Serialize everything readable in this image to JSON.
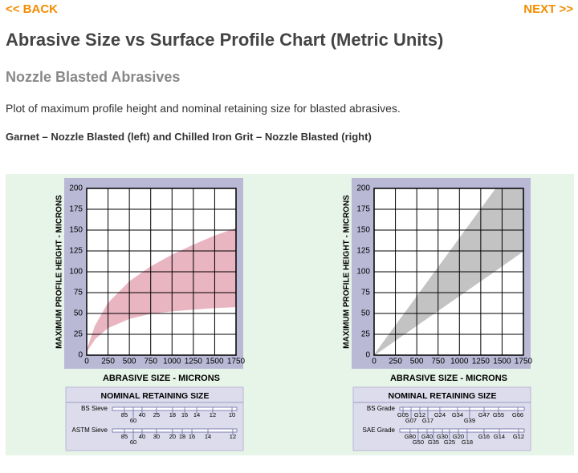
{
  "nav": {
    "back": "<< BACK",
    "next": "NEXT >>"
  },
  "title": "Abrasive Size vs Surface Profile Chart (Metric Units)",
  "subtitle": "Nozzle Blasted Abrasives",
  "description": "Plot of maximum profile height and nominal retaining size for blasted abrasives.",
  "caption": "Garnet – Nozzle Blasted (left) and Chilled Iron Grit – Nozzle Blasted (right)",
  "chart_data": [
    {
      "type": "band",
      "xlabel": "ABRASIVE SIZE - MICRONS",
      "ylabel": "MAXIMUM PROFILE HEIGHT - MICRONS",
      "x": [
        0,
        100,
        250,
        500,
        750,
        1000,
        1250,
        1500,
        1750
      ],
      "upper": [
        5,
        35,
        62,
        88,
        106,
        120,
        132,
        143,
        152
      ],
      "lower": [
        5,
        20,
        33,
        44,
        50,
        53,
        55,
        57,
        58
      ],
      "color": "#e8b5c1",
      "grid": true,
      "xlim": [
        0,
        1750
      ],
      "xticks": [
        0,
        250,
        500,
        750,
        1000,
        1250,
        1500,
        1750
      ],
      "ylim": [
        0,
        200
      ],
      "yticks": [
        0,
        25,
        50,
        75,
        100,
        125,
        150,
        175,
        200
      ],
      "scale": {
        "title": "NOMINAL RETAINING SIZE",
        "rows": [
          {
            "name": "BS Sieve",
            "ticks": [
              {
                "label": "85",
                "at": 442,
                "row": 1
              },
              {
                "label": "60",
                "at": 546,
                "row": 2
              },
              {
                "label": "40",
                "at": 649,
                "row": 1
              },
              {
                "label": "25",
                "at": 818,
                "row": 1
              },
              {
                "label": "18",
                "at": 1006,
                "row": 1
              },
              {
                "label": "16",
                "at": 1148,
                "row": 1
              },
              {
                "label": "14",
                "at": 1289,
                "row": 1
              },
              {
                "label": "12",
                "at": 1477,
                "row": 1
              },
              {
                "label": "10",
                "at": 1703,
                "row": 1
              }
            ]
          },
          {
            "name": "ASTM Sieve",
            "ticks": [
              {
                "label": "85",
                "at": 442,
                "row": 1
              },
              {
                "label": "60",
                "at": 546,
                "row": 2
              },
              {
                "label": "40",
                "at": 649,
                "row": 1
              },
              {
                "label": "30",
                "at": 818,
                "row": 1
              },
              {
                "label": "20",
                "at": 1006,
                "row": 1
              },
              {
                "label": "18",
                "at": 1120,
                "row": 1
              },
              {
                "label": "16",
                "at": 1233,
                "row": 1
              },
              {
                "label": "14",
                "at": 1421,
                "row": 1
              },
              {
                "label": "12",
                "at": 1712,
                "row": 1
              }
            ]
          }
        ]
      }
    },
    {
      "type": "band",
      "xlabel": "ABRASIVE SIZE - MICRONS",
      "ylabel": "MAXIMUM PROFILE HEIGHT - MICRONS",
      "x": [
        0,
        1430,
        1750
      ],
      "upper": [
        0,
        200,
        200
      ],
      "lower": [
        0,
        102,
        125
      ],
      "color": "#c3c3c3",
      "grid": true,
      "xlim": [
        0,
        1750
      ],
      "xticks": [
        0,
        250,
        500,
        750,
        1000,
        1250,
        1500,
        1750
      ],
      "ylim": [
        0,
        200
      ],
      "yticks": [
        0,
        25,
        50,
        75,
        100,
        125,
        150,
        175,
        200
      ],
      "scale": {
        "title": "NOMINAL RETAINING SIZE",
        "rows": [
          {
            "name": "BS Grade",
            "ticks": [
              {
                "label": "G05",
                "at": 339,
                "row": 1
              },
              {
                "label": "G07",
                "at": 433,
                "row": 2
              },
              {
                "label": "G12",
                "at": 536,
                "row": 1
              },
              {
                "label": "G17",
                "at": 630,
                "row": 2
              },
              {
                "label": "G24",
                "at": 771,
                "row": 1
              },
              {
                "label": "G34",
                "at": 978,
                "row": 1
              },
              {
                "label": "G39",
                "at": 1119,
                "row": 2
              },
              {
                "label": "G47",
                "at": 1289,
                "row": 1
              },
              {
                "label": "G55",
                "at": 1458,
                "row": 1
              },
              {
                "label": "G66",
                "at": 1684,
                "row": 1
              }
            ]
          },
          {
            "name": "SAE Grade",
            "ticks": [
              {
                "label": "G80",
                "at": 423,
                "row": 1
              },
              {
                "label": "G50",
                "at": 517,
                "row": 2
              },
              {
                "label": "G40",
                "at": 621,
                "row": 1
              },
              {
                "label": "G35",
                "at": 696,
                "row": 2
              },
              {
                "label": "G30",
                "at": 800,
                "row": 1
              },
              {
                "label": "G25",
                "at": 884,
                "row": 2
              },
              {
                "label": "G20",
                "at": 988,
                "row": 1
              },
              {
                "label": "G18",
                "at": 1091,
                "row": 2
              },
              {
                "label": "G16",
                "at": 1289,
                "row": 1
              },
              {
                "label": "G14",
                "at": 1468,
                "row": 1
              },
              {
                "label": "G12",
                "at": 1693,
                "row": 1
              }
            ]
          }
        ]
      }
    }
  ]
}
